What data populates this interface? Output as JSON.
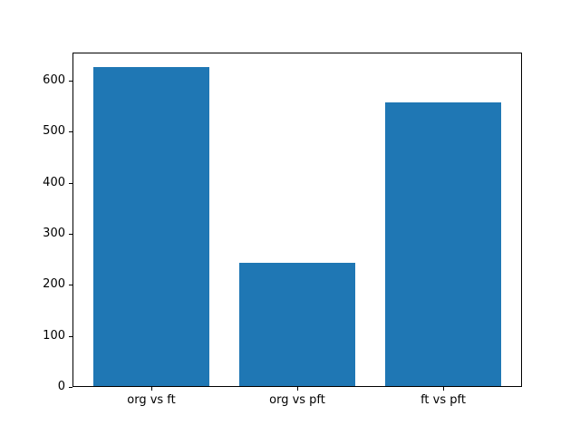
{
  "figure": {
    "background": "#ffffff"
  },
  "chart_data": {
    "type": "bar",
    "title": "",
    "xlabel": "",
    "ylabel": "",
    "categories": [
      "org vs ft",
      "org vs pft",
      "ft vs pft"
    ],
    "values": [
      624,
      242,
      555
    ],
    "ylim": [
      0,
      655
    ],
    "yticks": [
      0,
      100,
      200,
      300,
      400,
      500,
      600
    ],
    "bar_color": "#1f77b4",
    "axis_color": "#000000",
    "tick_label_color": "#000000",
    "grid": false,
    "legend": null
  }
}
